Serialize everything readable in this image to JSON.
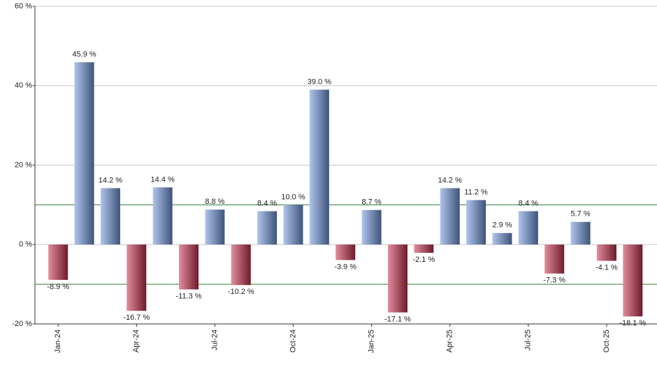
{
  "chart_data": {
    "type": "bar",
    "categories": [
      "Jan-24",
      null,
      null,
      "Apr-24",
      null,
      null,
      "Jul-24",
      null,
      null,
      "Oct-24",
      null,
      null,
      "Jan-25",
      null,
      null,
      "Apr-25",
      null,
      null,
      "Jul-25",
      null,
      null,
      "Oct-25",
      null
    ],
    "values": [
      -8.9,
      45.9,
      14.2,
      -16.7,
      14.4,
      -11.3,
      8.8,
      -10.2,
      8.4,
      10.0,
      39.0,
      -3.9,
      8.7,
      -17.1,
      -2.1,
      14.2,
      11.2,
      2.9,
      8.4,
      -7.3,
      5.7,
      -4.1,
      -18.1
    ],
    "value_labels": [
      "-8.9 %",
      "45.9 %",
      "14.2 %",
      "-16.7 %",
      "14.4 %",
      "-11.3 %",
      "8.8 %",
      "-10.2 %",
      "8.4 %",
      "10.0 %",
      "39.0 %",
      "-3.9 %",
      "8.7 %",
      "-17.1 %",
      "-2.1 %",
      "14.2 %",
      "11.2 %",
      "2.9 %",
      "8.4 %",
      "-7.3 %",
      "5.7 %",
      "-4.1 %",
      "-18.1 %"
    ],
    "color": "#7096dc",
    "negative_color": "#c8304f",
    "ylim": [
      -20,
      60
    ],
    "yticks": [
      {
        "value": -20,
        "label": "-20 %"
      },
      {
        "value": 0,
        "label": "0 %"
      },
      {
        "value": 20,
        "label": "20 %"
      },
      {
        "value": 40,
        "label": "40 %"
      },
      {
        "value": 60,
        "label": "60 %"
      }
    ],
    "grid": true,
    "reference_lines": [
      10,
      -10
    ],
    "reference_color": "#2e7d32"
  }
}
